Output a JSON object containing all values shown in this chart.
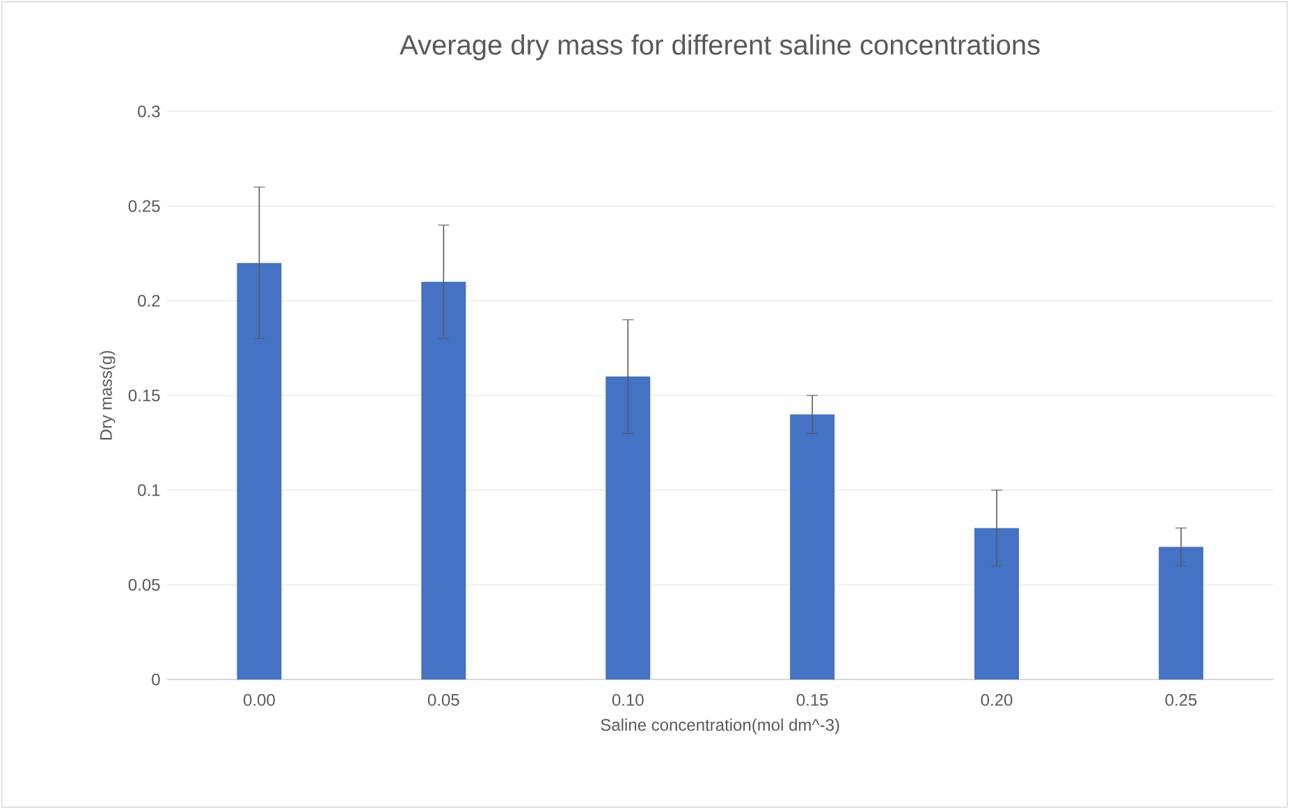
{
  "chart_data": {
    "type": "bar",
    "title": "Average dry mass for different saline concentrations",
    "xlabel": "Saline concentration(mol dm^-3)",
    "ylabel": "Dry mass(g)",
    "categories": [
      "0.00",
      "0.05",
      "0.10",
      "0.15",
      "0.20",
      "0.25"
    ],
    "values": [
      0.22,
      0.21,
      0.16,
      0.14,
      0.08,
      0.07
    ],
    "errors": [
      0.04,
      0.03,
      0.03,
      0.01,
      0.02,
      0.01
    ],
    "color": "#4472c4",
    "ylim": [
      0,
      0.3
    ],
    "yticks": [
      0,
      0.05,
      0.1,
      0.15,
      0.2,
      0.25,
      0.3
    ],
    "grid": "y"
  }
}
